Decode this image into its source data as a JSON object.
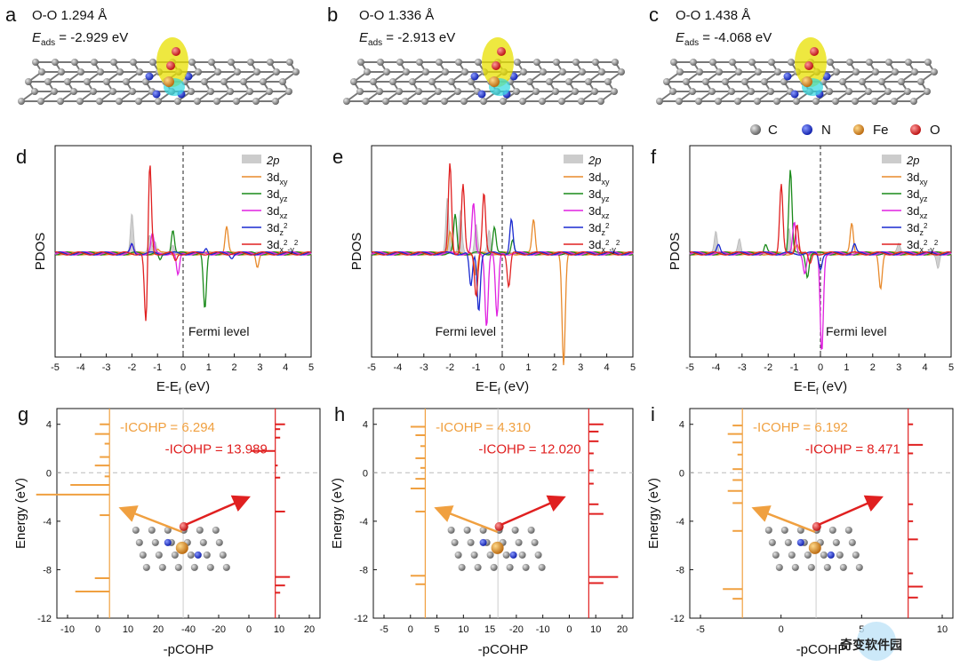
{
  "figure": {
    "panel_labels": [
      "a",
      "b",
      "c",
      "d",
      "e",
      "f",
      "g",
      "h",
      "i"
    ],
    "colors": {
      "C": "#808080",
      "N": "#2233cc",
      "Fe": "#e08a1e",
      "O": "#dd2222",
      "ref_line": "#bbbbbb"
    }
  },
  "structures": [
    {
      "label": "a",
      "oo": "O-O 1.294 Å",
      "e_sym": "E",
      "e_sub": "ads",
      "e_val": " = -2.929 eV"
    },
    {
      "label": "b",
      "oo": "O-O 1.336 Å",
      "e_sym": "E",
      "e_sub": "ads",
      "e_val": " = -2.913 eV"
    },
    {
      "label": "c",
      "oo": "O-O 1.438 Å",
      "e_sym": "E",
      "e_sub": "ads",
      "e_val": " = -4.068 eV"
    }
  ],
  "atom_legend": [
    {
      "label": "C",
      "color": "#808080"
    },
    {
      "label": "N",
      "color": "#2233cc"
    },
    {
      "label": "Fe",
      "color": "#e08a1e"
    },
    {
      "label": "O",
      "color": "#dd2222"
    }
  ],
  "pdos_axes": {
    "ylabel": "PDOS",
    "xlabel_main": "E-E",
    "xlabel_sub": "f",
    "xlabel_unit": " (eV)",
    "fermi_label": "Fermi level",
    "xticks": [
      "-5",
      "-4",
      "-3",
      "-2",
      "-1",
      "0",
      "1",
      "2",
      "3",
      "4",
      "5"
    ]
  },
  "pdos_legend": [
    {
      "main": "2p",
      "sub": "",
      "sup": "",
      "color": "#cccccc",
      "fill": true
    },
    {
      "main": "3d",
      "sub": "xy",
      "sup": "",
      "color": "#e88a2c"
    },
    {
      "main": "3d",
      "sub": "yz",
      "sup": "",
      "color": "#1a8a1a"
    },
    {
      "main": "3d",
      "sub": "xz",
      "sup": "",
      "color": "#e020e0"
    },
    {
      "main": "3d",
      "sub": "z",
      "sup": "2",
      "color": "#1a2ad0"
    },
    {
      "main": "3d",
      "sub": "x",
      "sup": "2",
      "tail_sub": "-y",
      "tail_sup": "2",
      "color": "#e02020"
    }
  ],
  "cohp_panels": [
    {
      "label": "g",
      "icohp_o": "-ICOHP = 6.294",
      "icohp_r": "-ICOHP = 13.989",
      "xticks": [
        "-10",
        "0",
        "10",
        "20",
        "-40",
        "-20",
        "0",
        "10",
        "20"
      ]
    },
    {
      "label": "h",
      "icohp_o": "-ICOHP = 4.310",
      "icohp_r": "-ICOHP = 12.020",
      "xticks": [
        "-5",
        "0",
        "5",
        "10",
        "15",
        "-20",
        "-10",
        "0",
        "10",
        "20"
      ]
    },
    {
      "label": "i",
      "icohp_o": "-ICOHP = 6.192",
      "icohp_r": "-ICOHP = 8.471",
      "xticks": [
        "-5",
        "0",
        "5",
        "10"
      ]
    }
  ],
  "cohp_axes": {
    "ylabel": "Energy (eV)",
    "xlabel": "-pCOHP",
    "yticks": [
      "4",
      "0",
      "-4",
      "-8",
      "-12"
    ]
  },
  "watermark": "奇变软件园",
  "chart_data": [
    {
      "type": "line",
      "title": "",
      "xlabel": "E-Ef (eV)",
      "ylabel": "PDOS",
      "xlim": [
        -5,
        5
      ],
      "panel": "d",
      "series": [
        {
          "name": "2p",
          "peaks": [
            [
              -2.0,
              0.55
            ],
            [
              -1.3,
              0.25
            ],
            [
              -1.1,
              0.18
            ],
            [
              -0.4,
              0.12
            ]
          ]
        },
        {
          "name": "3dxy",
          "peaks": [
            [
              1.7,
              0.35
            ],
            [
              2.9,
              -0.2
            ],
            [
              -1.0,
              0.05
            ]
          ]
        },
        {
          "name": "3dyz",
          "peaks": [
            [
              -0.4,
              0.32
            ],
            [
              0.85,
              -0.75
            ],
            [
              -0.9,
              -0.1
            ]
          ]
        },
        {
          "name": "3dxz",
          "peaks": [
            [
              -1.2,
              0.25
            ],
            [
              -0.2,
              -0.3
            ],
            [
              -2.0,
              0.1
            ]
          ]
        },
        {
          "name": "3dz2",
          "peaks": [
            [
              -2.0,
              0.12
            ],
            [
              0.9,
              0.08
            ],
            [
              1.9,
              -0.05
            ]
          ]
        },
        {
          "name": "3dx2-y2",
          "peaks": [
            [
              -1.3,
              1.2
            ],
            [
              -1.45,
              -0.95
            ],
            [
              -0.3,
              -0.1
            ]
          ]
        }
      ]
    },
    {
      "type": "line",
      "title": "",
      "xlabel": "E-Ef (eV)",
      "ylabel": "PDOS",
      "xlim": [
        -5,
        5
      ],
      "panel": "e",
      "series": [
        {
          "name": "2p",
          "peaks": [
            [
              -2.1,
              0.75
            ],
            [
              -1.6,
              0.55
            ],
            [
              -1.0,
              0.4
            ],
            [
              -0.5,
              0.3
            ]
          ]
        },
        {
          "name": "3dxy",
          "peaks": [
            [
              1.2,
              0.45
            ],
            [
              2.35,
              -1.45
            ],
            [
              -2.0,
              0.3
            ],
            [
              -1.0,
              -0.3
            ]
          ]
        },
        {
          "name": "3dyz",
          "peaks": [
            [
              -1.8,
              0.5
            ],
            [
              -0.3,
              0.35
            ],
            [
              0.4,
              0.2
            ]
          ]
        },
        {
          "name": "3dxz",
          "peaks": [
            [
              -1.1,
              0.65
            ],
            [
              -0.6,
              -0.95
            ],
            [
              -0.2,
              -0.85
            ]
          ]
        },
        {
          "name": "3dz2",
          "peaks": [
            [
              0.35,
              0.45
            ],
            [
              -1.2,
              -0.45
            ],
            [
              -0.9,
              -0.75
            ]
          ]
        },
        {
          "name": "3dx2-y2",
          "peaks": [
            [
              -2.0,
              1.2
            ],
            [
              -1.5,
              0.9
            ],
            [
              -0.7,
              0.8
            ],
            [
              -1.0,
              -0.55
            ],
            [
              0.25,
              -0.45
            ]
          ]
        }
      ]
    },
    {
      "type": "line",
      "title": "",
      "xlabel": "E-Ef (eV)",
      "ylabel": "PDOS",
      "xlim": [
        -5,
        5
      ],
      "panel": "f",
      "series": [
        {
          "name": "2p",
          "peaks": [
            [
              -4.0,
              0.3
            ],
            [
              -3.1,
              0.2
            ],
            [
              -1.2,
              0.35
            ],
            [
              4.5,
              -0.2
            ],
            [
              3.0,
              0.12
            ]
          ]
        },
        {
          "name": "3dxy",
          "peaks": [
            [
              1.2,
              0.4
            ],
            [
              2.3,
              -0.45
            ],
            [
              -0.9,
              0.1
            ]
          ]
        },
        {
          "name": "3dyz",
          "peaks": [
            [
              -1.15,
              1.1
            ],
            [
              -0.5,
              -0.3
            ],
            [
              -2.1,
              0.12
            ]
          ]
        },
        {
          "name": "3dxz",
          "peaks": [
            [
              0.05,
              -1.3
            ],
            [
              -0.6,
              -0.25
            ],
            [
              -1.0,
              0.4
            ]
          ]
        },
        {
          "name": "3dz2",
          "peaks": [
            [
              -3.9,
              0.1
            ],
            [
              0.0,
              -0.2
            ],
            [
              1.3,
              0.12
            ]
          ]
        },
        {
          "name": "3dx2-y2",
          "peaks": [
            [
              -1.5,
              0.9
            ],
            [
              -0.9,
              0.4
            ],
            [
              -0.4,
              -0.15
            ]
          ]
        }
      ]
    },
    {
      "type": "line",
      "panel": "g",
      "title": "",
      "xlabel": "-pCOHP",
      "ylabel": "Energy (eV)",
      "ylim": [
        -12,
        5
      ],
      "series": [
        {
          "name": "-ICOHP = 6.294",
          "peaks": [
            [
              4.0,
              -2
            ],
            [
              3.2,
              -3
            ],
            [
              2.4,
              -1
            ],
            [
              1.3,
              -2
            ],
            [
              0.6,
              -3
            ],
            [
              -0.3,
              -1
            ],
            [
              -1.0,
              -8
            ],
            [
              -1.8,
              -15
            ],
            [
              -3.5,
              -2
            ],
            [
              -8.7,
              -3
            ],
            [
              -9.8,
              -7
            ]
          ]
        },
        {
          "name": "-ICOHP = 13.989",
          "peaks": [
            [
              4.0,
              2
            ],
            [
              3.6,
              1
            ],
            [
              2.9,
              1
            ],
            [
              1.8,
              -5
            ],
            [
              0.6,
              0.5
            ],
            [
              -0.4,
              1
            ],
            [
              -3.2,
              2
            ],
            [
              -8.6,
              3
            ],
            [
              -9.3,
              2
            ],
            [
              -9.9,
              1
            ]
          ]
        }
      ]
    },
    {
      "type": "line",
      "panel": "h",
      "title": "",
      "xlabel": "-pCOHP",
      "ylabel": "Energy (eV)",
      "ylim": [
        -12,
        5
      ],
      "series": [
        {
          "name": "-ICOHP = 4.310",
          "peaks": [
            [
              3.8,
              -3
            ],
            [
              3.1,
              -2
            ],
            [
              2.2,
              -1
            ],
            [
              1.2,
              -2
            ],
            [
              0.4,
              -1
            ],
            [
              -0.5,
              -2
            ],
            [
              -1.3,
              -3
            ],
            [
              -3.2,
              -2
            ],
            [
              -8.5,
              -3
            ],
            [
              -9.2,
              -2
            ]
          ]
        },
        {
          "name": "-ICOHP = 12.020",
          "peaks": [
            [
              4.0,
              3
            ],
            [
              3.4,
              2
            ],
            [
              2.6,
              2
            ],
            [
              1.6,
              1
            ],
            [
              0.2,
              1
            ],
            [
              -0.9,
              1
            ],
            [
              -2.6,
              2
            ],
            [
              -3.4,
              3
            ],
            [
              -8.6,
              6
            ],
            [
              -9.1,
              3
            ]
          ]
        }
      ]
    },
    {
      "type": "line",
      "panel": "i",
      "title": "",
      "xlabel": "-pCOHP",
      "ylabel": "Energy (eV)",
      "ylim": [
        -12,
        5
      ],
      "series": [
        {
          "name": "-ICOHP = 6.192",
          "peaks": [
            [
              3.9,
              -2
            ],
            [
              3.2,
              -3
            ],
            [
              2.5,
              -2
            ],
            [
              1.5,
              -1
            ],
            [
              0.3,
              -2
            ],
            [
              -0.6,
              -2
            ],
            [
              -1.5,
              -3
            ],
            [
              -2.5,
              -2
            ],
            [
              -4.8,
              -2
            ],
            [
              -9.6,
              -4
            ],
            [
              -10.4,
              -2
            ]
          ]
        },
        {
          "name": "-ICOHP = 8.471",
          "peaks": [
            [
              2.3,
              3
            ],
            [
              4.0,
              1
            ],
            [
              1.6,
              1
            ],
            [
              -2.6,
              1
            ],
            [
              -4.0,
              1
            ],
            [
              -5.5,
              2
            ],
            [
              -8.3,
              1
            ],
            [
              -9.4,
              3
            ],
            [
              -10.3,
              2
            ]
          ]
        }
      ]
    }
  ]
}
